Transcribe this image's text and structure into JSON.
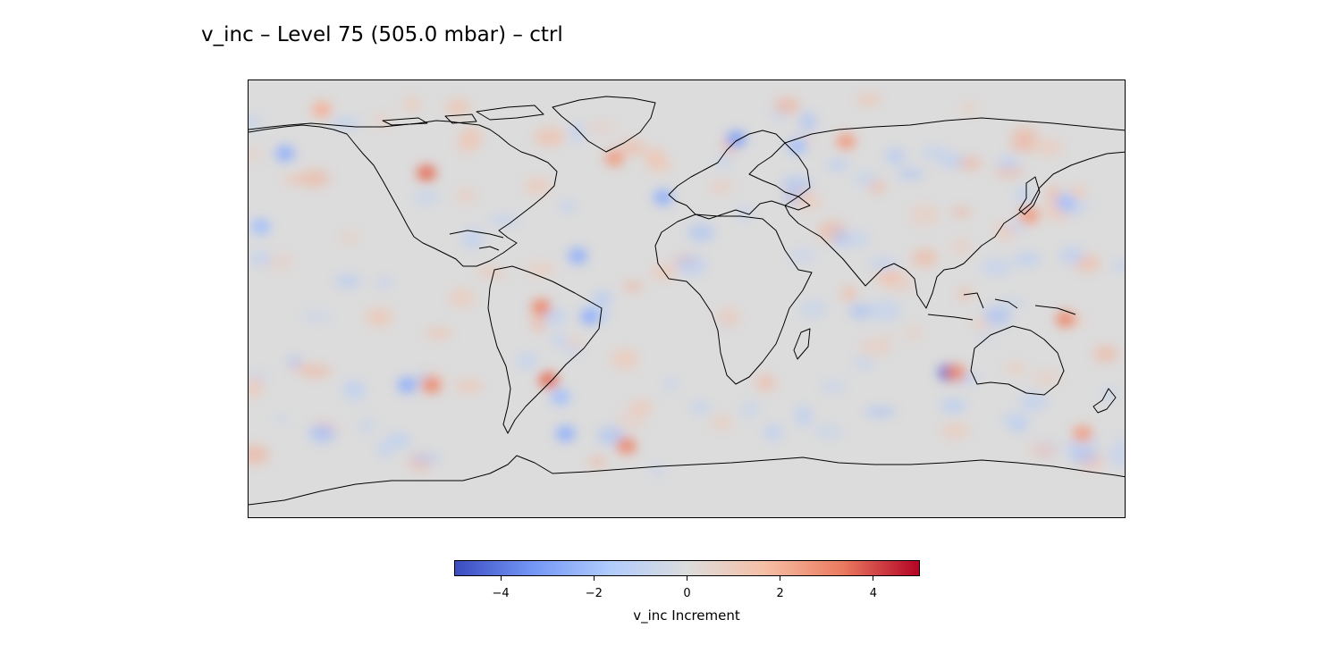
{
  "figure": {
    "title": "v_inc – Level 75 (505.0 mbar) – ctrl"
  },
  "map": {
    "projection": "PlateCarree",
    "extent_lon": [
      -180,
      180
    ],
    "extent_lat": [
      -90,
      90
    ],
    "background_color": "#dcdcdc",
    "coastline_color": "#000000",
    "field": "v_inc",
    "level": 75,
    "pressure_mbar": 505.0,
    "experiment": "ctrl",
    "notable_features": [
      {
        "lon": -107,
        "lat": 52,
        "value": 3.5
      },
      {
        "lon": -165,
        "lat": 60,
        "value": -2.5
      },
      {
        "lon": -45,
        "lat": 18,
        "value": -2.5
      },
      {
        "lon": -30,
        "lat": 58,
        "value": 2.5
      },
      {
        "lon": 20,
        "lat": 66,
        "value": -3
      },
      {
        "lon": -10,
        "lat": 42,
        "value": -2.5
      },
      {
        "lon": 65,
        "lat": 65,
        "value": 2.5
      },
      {
        "lon": 45,
        "lat": 63,
        "value": -2
      },
      {
        "lon": -115,
        "lat": -35,
        "value": -2.5
      },
      {
        "lon": -105,
        "lat": -35,
        "value": 3
      },
      {
        "lon": -57,
        "lat": -33,
        "value": 3.5
      },
      {
        "lon": -52,
        "lat": -40,
        "value": -2
      },
      {
        "lon": -50,
        "lat": -55,
        "value": -2.5
      },
      {
        "lon": -25,
        "lat": -60,
        "value": 3
      },
      {
        "lon": 107,
        "lat": -30,
        "value": -4.5
      },
      {
        "lon": 110,
        "lat": -30,
        "value": 3
      },
      {
        "lon": 155,
        "lat": -8,
        "value": 3
      },
      {
        "lon": 162,
        "lat": -55,
        "value": 2.5
      },
      {
        "lon": -60,
        "lat": -3,
        "value": 3
      },
      {
        "lon": -40,
        "lat": -7,
        "value": -2.5
      },
      {
        "lon": -150,
        "lat": 78,
        "value": 2
      },
      {
        "lon": -175,
        "lat": 30,
        "value": -2
      },
      {
        "lon": 140,
        "lat": 35,
        "value": 2.5
      },
      {
        "lon": 155,
        "lat": 40,
        "value": -2
      }
    ]
  },
  "colorbar": {
    "cmap": "coolwarm",
    "vmin": -5,
    "vmax": 5,
    "ticks": [
      -4,
      -2,
      0,
      2,
      4
    ],
    "tick_labels": [
      "−4",
      "−2",
      "0",
      "2",
      "4"
    ],
    "label": "v_inc Increment",
    "colors": [
      "#3b4cc0",
      "#7396f5",
      "#b0cbfc",
      "#dcdddd",
      "#f6bfa6",
      "#ea7b60",
      "#b40426"
    ]
  }
}
